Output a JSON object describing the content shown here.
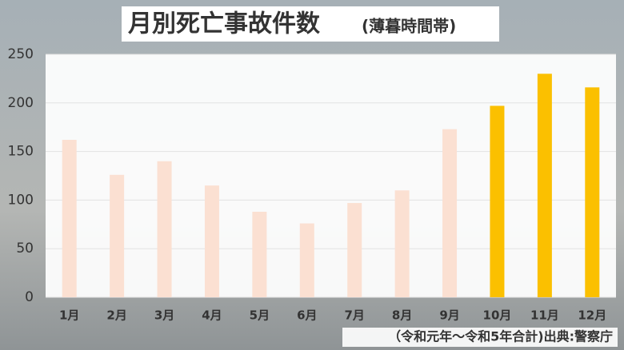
{
  "chart_data": {
    "type": "bar",
    "title": "月別死亡事故件数",
    "subtitle": "(薄暮時間帯)",
    "source": "（令和元年～令和5年合計)出典:警察庁",
    "categories": [
      "1月",
      "2月",
      "3月",
      "4月",
      "5月",
      "6月",
      "7月",
      "8月",
      "9月",
      "10月",
      "11月",
      "12月"
    ],
    "values": [
      162,
      126,
      140,
      115,
      88,
      76,
      97,
      110,
      173,
      197,
      230,
      216
    ],
    "colors": [
      "#fbe0d2",
      "#fbe0d2",
      "#fbe0d2",
      "#fbe0d2",
      "#fbe0d2",
      "#fbe0d2",
      "#fbe0d2",
      "#fbe0d2",
      "#fbe0d2",
      "#fbc000",
      "#fbc000",
      "#fbc000"
    ],
    "ylim": [
      0,
      250
    ],
    "yticks": [
      0,
      50,
      100,
      150,
      200,
      250
    ],
    "grid": true
  }
}
